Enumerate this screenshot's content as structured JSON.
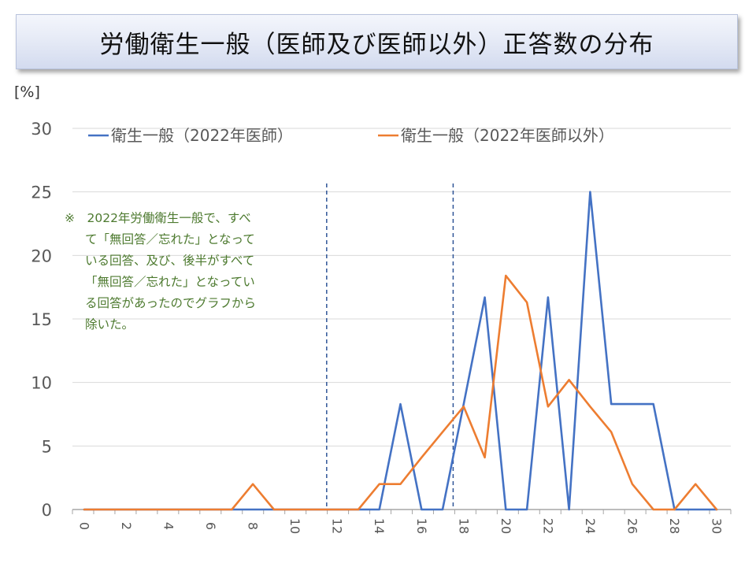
{
  "title": "労働衛生一般（医師及び医師以外）正答数の分布",
  "unit_label": "[%]",
  "note_lines": [
    "※　2022年労働衛生一般で、すべ",
    "て「無回答／忘れた」となって",
    "いる回答、及び、後半がすべて",
    "「無回答／忘れた」となってい",
    "る回答があったのでグラフから",
    "除いた。"
  ],
  "colors": {
    "series1": "#4472c4",
    "series2": "#ed7d31",
    "grid": "#d9d9d9",
    "axis": "#a6a6a6",
    "ref_line": "#2f5597"
  },
  "chart_data": {
    "type": "line",
    "x": [
      0,
      1,
      2,
      3,
      4,
      5,
      6,
      7,
      8,
      9,
      10,
      11,
      12,
      13,
      14,
      15,
      16,
      17,
      18,
      19,
      20,
      21,
      22,
      23,
      24,
      25,
      26,
      27,
      28,
      29,
      30
    ],
    "xlim": [
      0,
      30
    ],
    "ylim": [
      0,
      30
    ],
    "yticks": [
      "0",
      "5",
      "10",
      "15",
      "20",
      "25",
      "30"
    ],
    "xticks": [
      "0",
      "2",
      "4",
      "6",
      "8",
      "10",
      "12",
      "14",
      "16",
      "18",
      "20",
      "22",
      "24",
      "26",
      "28",
      "30"
    ],
    "xtick_values": [
      0,
      2,
      4,
      6,
      8,
      10,
      12,
      14,
      16,
      18,
      20,
      22,
      24,
      26,
      28,
      30
    ],
    "ytick_values": [
      0,
      5,
      10,
      15,
      20,
      25,
      30
    ],
    "grid": true,
    "legend_position": "top",
    "reference_lines_x": [
      11.5,
      17.5
    ],
    "series": [
      {
        "name": "衛生一般（2022年医師）",
        "color": "#4472c4",
        "values": [
          0,
          0,
          0,
          0,
          0,
          0,
          0,
          0,
          0,
          0,
          0,
          0,
          0,
          0,
          0,
          8.3,
          0,
          0,
          8.3,
          16.7,
          0,
          0,
          16.7,
          0,
          25,
          8.3,
          8.3,
          8.3,
          0,
          0,
          0
        ]
      },
      {
        "name": "衛生一般（2022年医師以外）",
        "color": "#ed7d31",
        "values": [
          0,
          0,
          0,
          0,
          0,
          0,
          0,
          0,
          2,
          0,
          0,
          0,
          0,
          0,
          2,
          2,
          4.1,
          6.1,
          8.1,
          4.1,
          18.4,
          16.3,
          8.1,
          10.2,
          8.1,
          6.1,
          2,
          0,
          0,
          2,
          0
        ]
      }
    ]
  }
}
